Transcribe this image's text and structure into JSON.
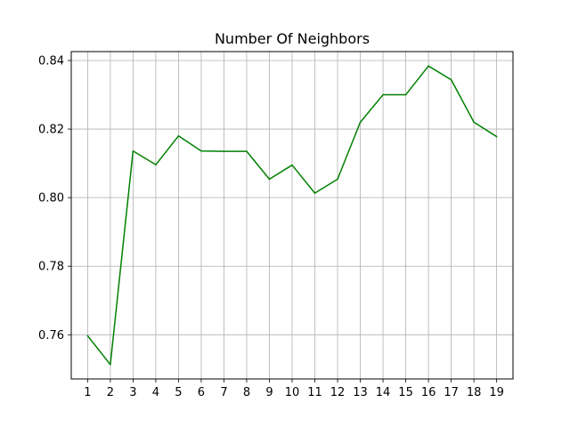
{
  "chart_data": {
    "type": "line",
    "title": "Number Of Neighbors",
    "xlabel": "",
    "ylabel": "",
    "x": [
      1,
      2,
      3,
      4,
      5,
      6,
      7,
      8,
      9,
      10,
      11,
      12,
      13,
      14,
      15,
      16,
      17,
      18,
      19
    ],
    "series": [
      {
        "values": [
          0.7597,
          0.7513,
          0.8136,
          0.8096,
          0.818,
          0.8136,
          0.8135,
          0.8135,
          0.8054,
          0.8095,
          0.8013,
          0.8054,
          0.822,
          0.83,
          0.83,
          0.8384,
          0.8344,
          0.822,
          0.8178
        ],
        "color": "#008000"
      }
    ],
    "xlim": [
      0.28,
      19.72
    ],
    "ylim": [
      0.7471,
      0.8426
    ],
    "yticks": [
      0.76,
      0.78,
      0.8,
      0.82,
      0.84
    ],
    "ytick_labels": [
      "0.76",
      "0.78",
      "0.80",
      "0.82",
      "0.84"
    ],
    "xtick_labels": [
      "1",
      "2",
      "3",
      "4",
      "5",
      "6",
      "7",
      "8",
      "9",
      "10",
      "11",
      "12",
      "13",
      "14",
      "15",
      "16",
      "17",
      "18",
      "19"
    ],
    "grid": true,
    "legend": "none"
  }
}
